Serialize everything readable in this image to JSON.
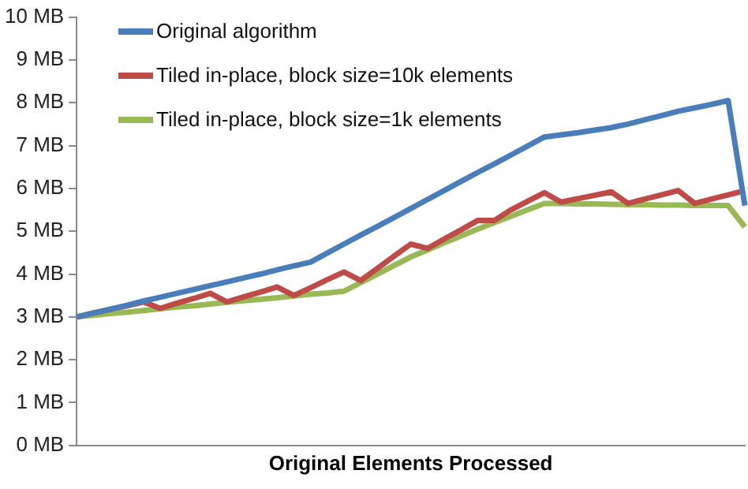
{
  "chart_data": {
    "type": "line",
    "xlabel": "Original Elements Processed",
    "categories": [
      null,
      null,
      null,
      null,
      null,
      null,
      null,
      null,
      null,
      null,
      null,
      null,
      null,
      null,
      null,
      null,
      null,
      null,
      null,
      null,
      null,
      null,
      null,
      null,
      null,
      null,
      null,
      null,
      null,
      null,
      null,
      null,
      null,
      null,
      null,
      null,
      null,
      null,
      null,
      null,
      null
    ],
    "series": [
      {
        "name": "Original algorithm",
        "color": "#4a7ebb",
        "values": [
          3.0,
          3.09,
          3.18,
          3.27,
          3.37,
          3.46,
          3.55,
          3.64,
          3.73,
          3.82,
          3.91,
          4.0,
          4.1,
          4.19,
          4.28,
          4.49,
          4.7,
          4.91,
          5.11,
          5.32,
          5.53,
          5.74,
          5.95,
          6.16,
          6.37,
          6.57,
          6.78,
          6.99,
          7.2,
          7.25,
          7.3,
          7.36,
          7.42,
          7.5,
          7.6,
          7.7,
          7.8,
          7.88,
          7.96,
          8.05,
          5.6
        ]
      },
      {
        "name": "Tiled in-place, block size=10k elements",
        "color": "#be4b48",
        "values": [
          3.0,
          3.09,
          3.18,
          3.26,
          3.35,
          3.2,
          3.32,
          3.43,
          3.55,
          3.35,
          3.47,
          3.58,
          3.7,
          3.5,
          3.68,
          3.87,
          4.05,
          3.85,
          4.13,
          4.42,
          4.7,
          4.6,
          4.82,
          5.03,
          5.25,
          5.25,
          5.5,
          5.7,
          5.9,
          5.68,
          5.76,
          5.84,
          5.92,
          5.65,
          5.75,
          5.85,
          5.95,
          5.65,
          5.75,
          5.85,
          5.95
        ]
      },
      {
        "name": "Tiled in-place, block size=1k elements",
        "color": "#98b954",
        "values": [
          3.0,
          3.04,
          3.08,
          3.11,
          3.15,
          3.19,
          3.23,
          3.26,
          3.3,
          3.34,
          3.38,
          3.41,
          3.45,
          3.49,
          3.53,
          3.56,
          3.6,
          3.8,
          4.0,
          4.2,
          4.4,
          4.56,
          4.73,
          4.89,
          5.05,
          5.2,
          5.35,
          5.5,
          5.65,
          5.65,
          5.64,
          5.64,
          5.63,
          5.62,
          5.62,
          5.61,
          5.61,
          5.6,
          5.6,
          5.6,
          5.1
        ]
      }
    ],
    "ylim": [
      0,
      10
    ],
    "yticks": [
      {
        "value": 0,
        "label": "0 MB"
      },
      {
        "value": 1,
        "label": "1 MB"
      },
      {
        "value": 2,
        "label": "2 MB"
      },
      {
        "value": 3,
        "label": "3 MB"
      },
      {
        "value": 4,
        "label": "4 MB"
      },
      {
        "value": 5,
        "label": "5 MB"
      },
      {
        "value": 6,
        "label": "6 MB"
      },
      {
        "value": 7,
        "label": "7 MB"
      },
      {
        "value": 8,
        "label": "8 MB"
      },
      {
        "value": 9,
        "label": "9 MB"
      },
      {
        "value": 10,
        "label": "10 MB"
      }
    ],
    "grid": false,
    "legend": "top left",
    "tick_labels": "y",
    "marker": "none",
    "line_style": "solid"
  }
}
